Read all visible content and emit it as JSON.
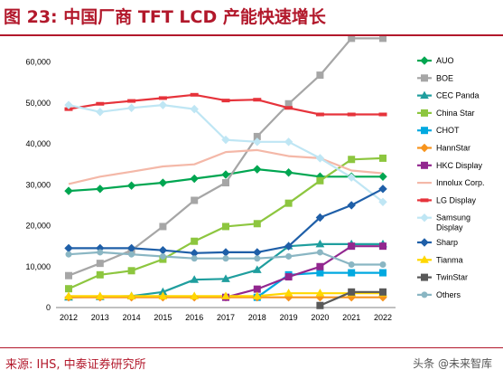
{
  "header": {
    "title": "图 23:  中国厂商 TFT LCD 产能快速增长"
  },
  "footer": {
    "source": "来源: IHS, 中泰证券研究所",
    "watermark": "头条 @未来智库"
  },
  "chart_data": {
    "type": "line",
    "x": [
      2012,
      2013,
      2014,
      2015,
      2016,
      2017,
      2018,
      2019,
      2020,
      2021,
      2022
    ],
    "ylim": [
      0,
      65000
    ],
    "yticks": [
      "0",
      "10,000",
      "20,000",
      "30,000",
      "40,000",
      "50,000",
      "60,000"
    ],
    "ytick_values": [
      0,
      10000,
      20000,
      30000,
      40000,
      50000,
      60000
    ],
    "grid": false,
    "legend_position": "right",
    "series": [
      {
        "name": "AUO",
        "color": "#00a651",
        "marker": "diamond",
        "values": [
          28500,
          29000,
          29800,
          30500,
          31500,
          32500,
          33800,
          33000,
          32000,
          32000,
          32000
        ]
      },
      {
        "name": "BOE",
        "color": "#a6a6a6",
        "marker": "square",
        "values": [
          7800,
          10800,
          14000,
          19800,
          26200,
          30500,
          41800,
          49800,
          56800,
          65800,
          65800
        ]
      },
      {
        "name": "CEC Panda",
        "color": "#1f9e9e",
        "marker": "triangle",
        "values": [
          2500,
          2600,
          2800,
          3800,
          6800,
          7000,
          9200,
          15000,
          15500,
          15500,
          15500
        ]
      },
      {
        "name": "China Star",
        "color": "#8dc63f",
        "marker": "square",
        "values": [
          4600,
          8000,
          9000,
          11800,
          16200,
          19800,
          20500,
          25500,
          31000,
          36200,
          36500
        ]
      },
      {
        "name": "CHOT",
        "color": "#00a9e0",
        "marker": "square",
        "values": [
          null,
          null,
          null,
          null,
          null,
          null,
          2500,
          8000,
          8500,
          8500,
          8500
        ]
      },
      {
        "name": "HannStar",
        "color": "#f7941d",
        "marker": "diamond",
        "values": [
          2500,
          2500,
          2500,
          2500,
          2500,
          2500,
          2500,
          2500,
          2500,
          2500,
          2500
        ]
      },
      {
        "name": "HKC Display",
        "color": "#92278f",
        "marker": "square",
        "values": [
          null,
          null,
          null,
          null,
          null,
          2500,
          4500,
          7500,
          10000,
          15000,
          15000
        ]
      },
      {
        "name": "Innolux Corp.",
        "color": "#f4b8a8",
        "marker": "none",
        "values": [
          30200,
          32000,
          33200,
          34500,
          35000,
          38000,
          38500,
          37000,
          36500,
          33500,
          32800
        ]
      },
      {
        "name": "LG Display",
        "color": "#e6333b",
        "marker": "dash",
        "values": [
          48500,
          49800,
          50500,
          51200,
          52000,
          50600,
          50800,
          48800,
          47200,
          47200,
          47200
        ]
      },
      {
        "name": "Samsung Display",
        "color": "#bfe6f4",
        "marker": "diamond",
        "values": [
          49500,
          47800,
          48800,
          49500,
          48500,
          41000,
          40500,
          40500,
          36500,
          31800,
          25800
        ]
      },
      {
        "name": "Sharp",
        "color": "#1f5fa8",
        "marker": "diamond",
        "values": [
          14500,
          14500,
          14500,
          14000,
          13300,
          13500,
          13500,
          15000,
          22000,
          25000,
          29000
        ]
      },
      {
        "name": "Tianma",
        "color": "#ffd700",
        "marker": "triangle",
        "values": [
          2800,
          2800,
          2800,
          2800,
          2800,
          2800,
          2800,
          3500,
          3500,
          3500,
          3500
        ]
      },
      {
        "name": "TwinStar",
        "color": "#595959",
        "marker": "square",
        "values": [
          null,
          null,
          null,
          null,
          null,
          null,
          null,
          null,
          500,
          3800,
          3800
        ]
      },
      {
        "name": "Others",
        "color": "#8ab6c3",
        "marker": "circle",
        "values": [
          13000,
          13500,
          13000,
          12500,
          12000,
          12000,
          12000,
          12500,
          13500,
          10500,
          10500
        ]
      }
    ]
  }
}
